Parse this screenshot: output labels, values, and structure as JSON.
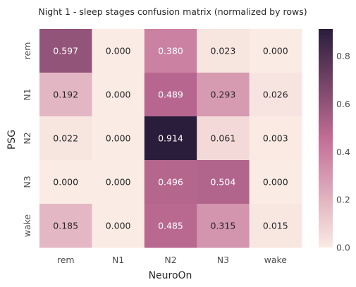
{
  "chart_data": {
    "type": "heatmap",
    "title": "Night 1 - sleep stages confusion matrix (normalized by rows)",
    "xlabel": "NeuroOn",
    "ylabel": "PSG",
    "x_categories": [
      "rem",
      "N1",
      "N2",
      "N3",
      "wake"
    ],
    "y_categories": [
      "rem",
      "N1",
      "N2",
      "N3",
      "wake"
    ],
    "values": [
      [
        0.597,
        0.0,
        0.38,
        0.023,
        0.0
      ],
      [
        0.192,
        0.0,
        0.489,
        0.293,
        0.026
      ],
      [
        0.022,
        0.0,
        0.914,
        0.061,
        0.003
      ],
      [
        0.0,
        0.0,
        0.496,
        0.504,
        0.0
      ],
      [
        0.185,
        0.0,
        0.485,
        0.315,
        0.015
      ]
    ],
    "value_labels": [
      [
        "0.597",
        "0.000",
        "0.380",
        "0.023",
        "0.000"
      ],
      [
        "0.192",
        "0.000",
        "0.489",
        "0.293",
        "0.026"
      ],
      [
        "0.022",
        "0.000",
        "0.914",
        "0.061",
        "0.003"
      ],
      [
        "0.000",
        "0.000",
        "0.496",
        "0.504",
        "0.000"
      ],
      [
        "0.185",
        "0.000",
        "0.485",
        "0.315",
        "0.015"
      ]
    ],
    "colorbar": {
      "min": 0.0,
      "max": 0.914,
      "ticks": [
        0.0,
        0.2,
        0.4,
        0.6,
        0.8
      ],
      "tick_labels": [
        "0.0",
        "0.2",
        "0.4",
        "0.6",
        "0.8"
      ]
    },
    "colormap": {
      "low": "#faebe4",
      "mid": "#c26d95",
      "high": "#2a1d3b"
    },
    "text_colors": {
      "dark": "#262626",
      "light": "#ffffff"
    }
  }
}
